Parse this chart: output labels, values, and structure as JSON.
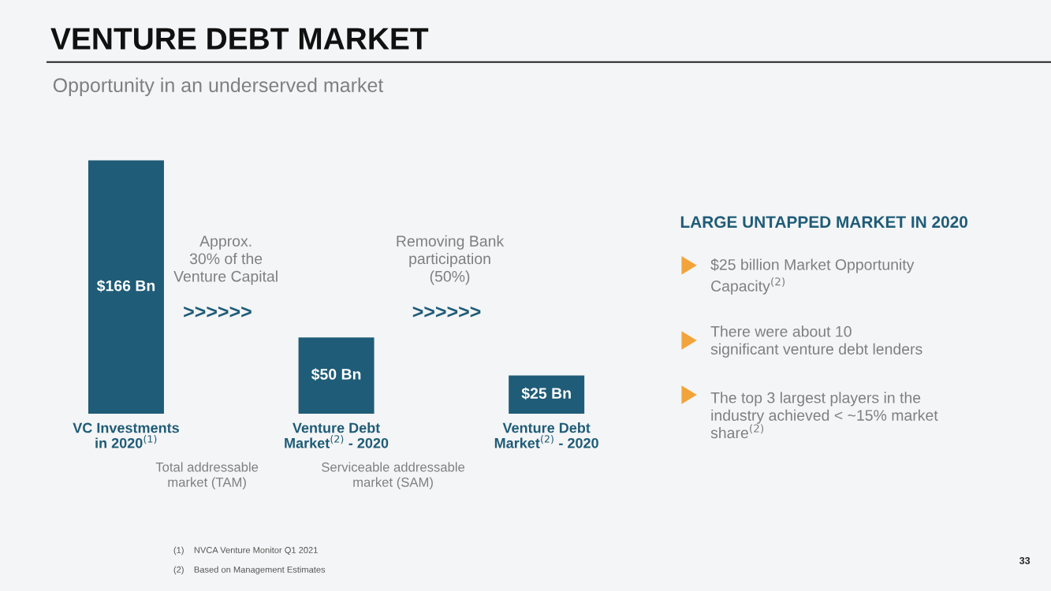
{
  "chart_data": {
    "type": "bar",
    "title": "VENTURE DEBT MARKET",
    "subtitle": "Opportunity in an underserved market",
    "categories": [
      "VC Investments\nin 2020$^{(1)}$",
      "Venture Debt\nMarket$^{(2)}$ - 2020",
      "Venture Debt\nMarket$^{(2)}$ - 2020"
    ],
    "values": [
      166,
      50,
      25
    ],
    "value_labels": [
      "$166 Bn",
      "$50 Bn",
      "$25 Bn"
    ],
    "color": "#1f5c78",
    "annotations": [
      "Approx.\n30% of the\nVenture Capital",
      ">>>>>>",
      "Removing Bank\nparticipation\n(50%)",
      ">>>>>>",
      "Total addressable\nmarket (TAM)",
      "Serviceable addressable\nmarket (SAM)",
      "LARGE UNTAPPED MARKET IN 2020",
      "$25 billion Market Opportunity\nCapacity$^{(2)}$",
      "There were about 10\nsignificant venture debt lenders",
      "The top 3 largest players in the\nindustry achieved < ~15% market\nshare$^{(2)}$",
      "(1)    NVCA Venture Monitor Q1 2021",
      "(2)    Based on Management Estimates",
      "33"
    ],
    "grid": false
  }
}
